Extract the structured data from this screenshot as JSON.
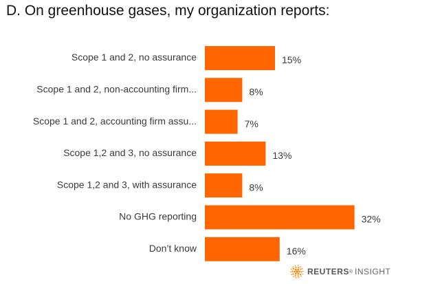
{
  "title": "D. On greenhouse gases, my organization reports:",
  "chart_data": {
    "type": "bar",
    "orientation": "horizontal",
    "categories": [
      "Scope 1 and 2, no assurance",
      "Scope 1 and 2, non-accounting firm...",
      "Scope 1 and 2, accounting firm assu...",
      "Scope 1,2 and 3, no assurance",
      "Scope 1,2 and 3, with assurance",
      "No GHG reporting",
      "Don’t know"
    ],
    "values": [
      15,
      8,
      7,
      13,
      8,
      32,
      16
    ],
    "value_labels": [
      "15%",
      "8%",
      "7%",
      "13%",
      "8%",
      "32%",
      "16%"
    ],
    "unit": "%",
    "bar_color": "#FF6600",
    "grid": false,
    "legend": "none"
  },
  "brand": {
    "name": "REUTERS",
    "registered": "®",
    "sub": "INSIGHT",
    "icon": "reuters-dot-logo",
    "color": "#FF8000"
  }
}
